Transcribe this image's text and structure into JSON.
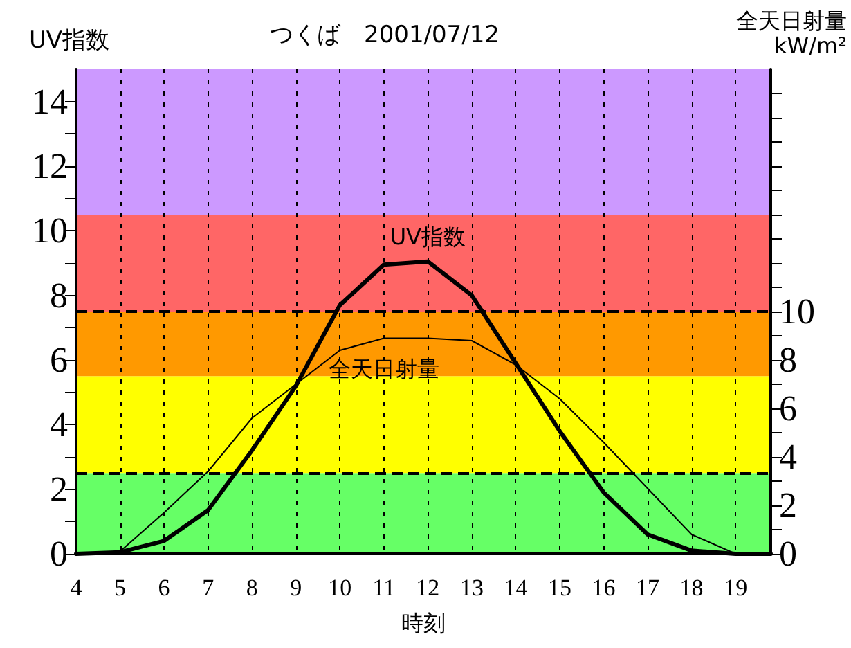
{
  "chart_data": {
    "type": "line",
    "title": "つくば　2001/07/12",
    "xlabel": "時刻",
    "ylabel": "UV指数",
    "y2label": "全天日射量\nkW/m²",
    "x": [
      4,
      5,
      6,
      7,
      8,
      9,
      10,
      11,
      12,
      13,
      14,
      15,
      16,
      17,
      18,
      19,
      19.8
    ],
    "series": [
      {
        "name": "UV指数",
        "color": "#000000",
        "values": [
          0,
          0.05,
          0.4,
          1.35,
          3.2,
          5.2,
          7.7,
          8.95,
          9.05,
          8.0,
          5.9,
          3.8,
          1.9,
          0.6,
          0.1,
          0,
          0
        ]
      },
      {
        "name": "全天日射量",
        "color": "#000000",
        "axis": "y2",
        "values": [
          0,
          0.1,
          1.7,
          3.4,
          5.6,
          7.0,
          8.4,
          8.9,
          8.9,
          8.8,
          7.8,
          6.4,
          4.6,
          2.7,
          0.8,
          0,
          0
        ]
      }
    ],
    "xlim": [
      4,
      19.8
    ],
    "xticks": [
      4,
      5,
      6,
      7,
      8,
      9,
      10,
      11,
      12,
      13,
      14,
      15,
      16,
      17,
      18,
      19
    ],
    "ylim": [
      0,
      15
    ],
    "yticks": [
      0,
      {
        "value": 1,
        "label": null
      },
      2,
      {
        "value": 3,
        "label": null
      },
      4,
      {
        "value": 5,
        "label": null
      },
      6,
      {
        "value": 7,
        "label": null
      },
      8,
      {
        "value": 9,
        "label": null
      },
      10,
      {
        "value": 11,
        "label": null
      },
      12,
      {
        "value": 13,
        "label": null
      },
      14
    ],
    "y2lim": [
      0,
      20
    ],
    "y2ticks": [
      0,
      {
        "value": 1,
        "label": null
      },
      2,
      {
        "value": 3,
        "label": null
      },
      4,
      {
        "value": 5,
        "label": null
      },
      6,
      {
        "value": 7,
        "label": null
      },
      8,
      {
        "value": 9,
        "label": null
      },
      10,
      {
        "value": 11,
        "label": null
      },
      {
        "value": 12,
        "label": null
      },
      {
        "value": 13,
        "label": null
      },
      {
        "value": 14,
        "label": null
      },
      {
        "value": 15,
        "label": null
      },
      {
        "value": 16,
        "label": null
      },
      {
        "value": 17,
        "label": null
      },
      {
        "value": 18,
        "label": null
      },
      {
        "value": 19,
        "label": null
      }
    ],
    "bands": [
      {
        "axis": "y",
        "from": 0,
        "to": 2.5,
        "color": "#66ff66"
      },
      {
        "axis": "y",
        "from": 2.5,
        "to": 5.5,
        "color": "#ffff00"
      },
      {
        "axis": "y",
        "from": 5.5,
        "to": 7.5,
        "color": "#ff9900"
      },
      {
        "axis": "y",
        "from": 7.5,
        "to": 10.5,
        "color": "#ff6666"
      },
      {
        "axis": "y",
        "from": 10.5,
        "to": 15,
        "color": "#cc99ff"
      }
    ],
    "ref_lines": [
      {
        "axis": "y",
        "value": 2.5,
        "line_style": "dashed",
        "color": "#000000"
      },
      {
        "axis": "y",
        "value": 7.5,
        "line_style": "dashed",
        "color": "#000000"
      }
    ],
    "grid": "x",
    "line_style": "solid",
    "marker": "none"
  }
}
